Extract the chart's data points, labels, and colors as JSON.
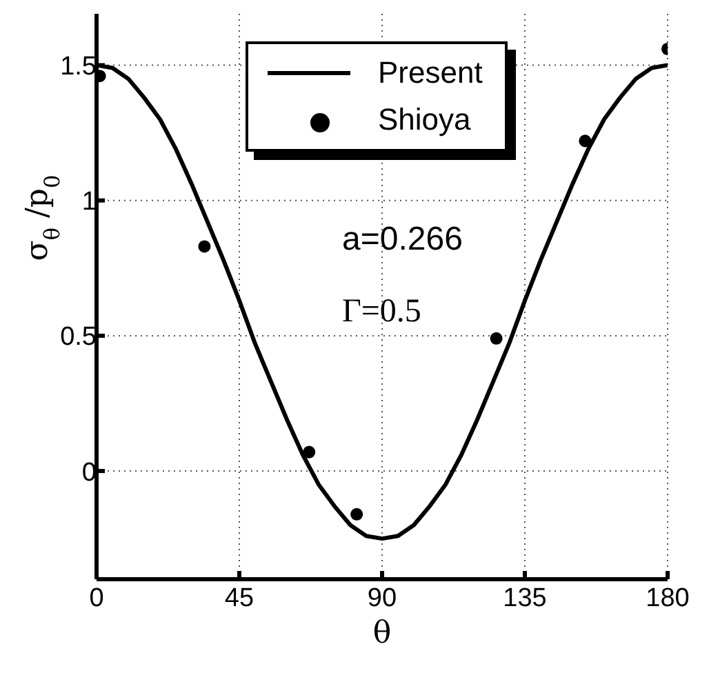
{
  "chart_data": {
    "type": "line",
    "xlabel": "θ",
    "ylabel": "σ$_{θ}$ /p$_{0}$",
    "xlim": [
      0,
      180
    ],
    "xticks": [
      0,
      45,
      90,
      135,
      180
    ],
    "ylim": [
      -0.4,
      1.69
    ],
    "yticks": [
      0,
      0.5,
      1,
      1.5
    ],
    "grid": true,
    "legend": "top",
    "annotations": [
      "a=0.266",
      "Γ=0.5"
    ],
    "series": [
      {
        "name": "Present",
        "type": "line",
        "color": "#000000",
        "marker": "none",
        "line_style": "solid",
        "x": [
          0,
          5,
          10,
          15,
          20,
          25,
          30,
          35,
          40,
          45,
          50,
          55,
          60,
          65,
          70,
          75,
          80,
          85,
          90,
          95,
          100,
          105,
          110,
          115,
          120,
          125,
          130,
          135,
          140,
          145,
          150,
          155,
          160,
          165,
          170,
          175,
          180
        ],
        "values": [
          1.5,
          1.49,
          1.45,
          1.38,
          1.3,
          1.19,
          1.06,
          0.92,
          0.78,
          0.63,
          0.47,
          0.33,
          0.19,
          0.06,
          -0.05,
          -0.13,
          -0.2,
          -0.24,
          -0.25,
          -0.24,
          -0.2,
          -0.13,
          -0.05,
          0.06,
          0.19,
          0.33,
          0.47,
          0.63,
          0.78,
          0.92,
          1.06,
          1.19,
          1.3,
          1.38,
          1.45,
          1.49,
          1.5
        ]
      },
      {
        "name": "Shioya",
        "type": "scatter",
        "color": "#000000",
        "marker": "circle",
        "x": [
          1,
          34,
          67,
          82,
          126,
          154,
          180
        ],
        "values": [
          1.46,
          0.83,
          0.07,
          -0.16,
          0.49,
          1.22,
          1.56
        ]
      }
    ]
  }
}
